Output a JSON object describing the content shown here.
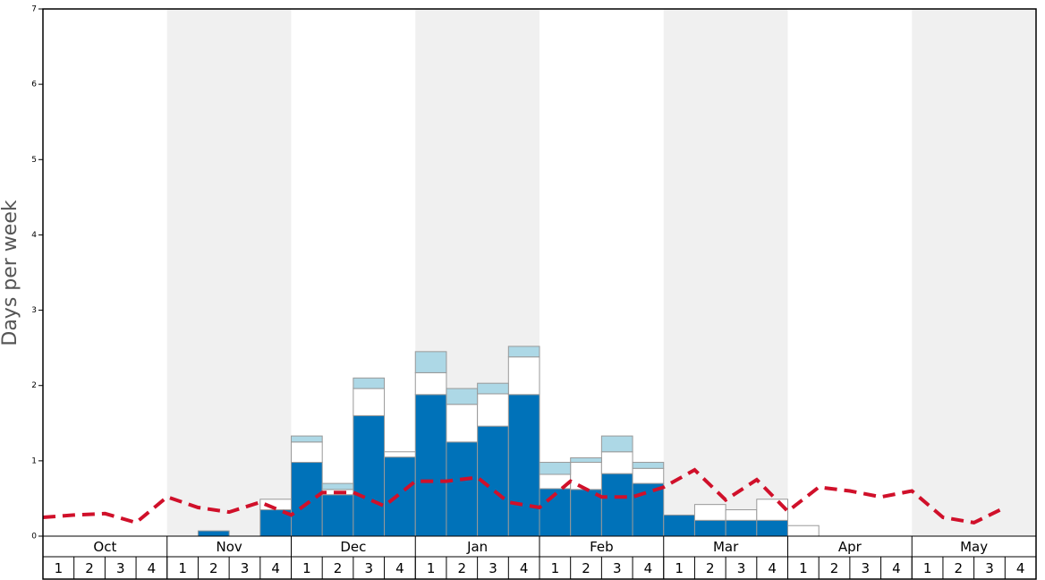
{
  "chart_data": {
    "type": "stacked-bar-line",
    "y_label": "Days per week",
    "groups": [
      "Oct",
      "Nov",
      "Dec",
      "Jan",
      "Feb",
      "Mar",
      "Apr",
      "May"
    ],
    "categories": [
      "1",
      "2",
      "3",
      "4",
      "1",
      "2",
      "3",
      "4",
      "1",
      "2",
      "3",
      "4",
      "1",
      "2",
      "3",
      "4",
      "1",
      "2",
      "3",
      "4",
      "1",
      "2",
      "3",
      "4",
      "1",
      "2",
      "3",
      "4",
      "1",
      "2",
      "3",
      "4"
    ],
    "band_color": "#f0f0f0",
    "series": [
      {
        "color": "#0072b9",
        "values": [
          0,
          0,
          0,
          0,
          0,
          0.07,
          0,
          0.35,
          0.98,
          0.55,
          1.6,
          1.05,
          1.88,
          1.25,
          1.46,
          1.88,
          0.63,
          0.62,
          0.83,
          0.7,
          0.28,
          0.21,
          0.21,
          0.21,
          0,
          0,
          0,
          0,
          0,
          0,
          0,
          0
        ]
      },
      {
        "color": "#ffffff",
        "values": [
          0,
          0,
          0,
          0,
          0,
          0,
          0,
          0.14,
          0.27,
          0.07,
          0.36,
          0.07,
          0.29,
          0.5,
          0.43,
          0.5,
          0.19,
          0.36,
          0.29,
          0.2,
          0,
          0.21,
          0.14,
          0.28,
          0.14,
          0,
          0,
          0,
          0,
          0,
          0,
          0
        ]
      },
      {
        "color": "#add8e6",
        "values": [
          0,
          0,
          0,
          0,
          0,
          0,
          0,
          0,
          0.08,
          0.08,
          0.14,
          0,
          0.28,
          0.21,
          0.14,
          0.14,
          0.16,
          0.06,
          0.21,
          0.08,
          0,
          0,
          0,
          0,
          0,
          0,
          0,
          0,
          0,
          0,
          0,
          0
        ]
      },
      {
        "type": "line",
        "color": "#d0102a",
        "dashed": true,
        "values": [
          0.25,
          0.28,
          0.3,
          0.18,
          0.52,
          0.38,
          0.32,
          0.45,
          0.28,
          0.58,
          0.58,
          0.4,
          0.73,
          0.73,
          0.78,
          0.45,
          0.38,
          0.73,
          0.52,
          0.52,
          0.65,
          0.88,
          0.48,
          0.75,
          0.33,
          0.65,
          0.6,
          0.52,
          0.6,
          0.25,
          0.18,
          0.38
        ]
      }
    ],
    "ylim": [
      0,
      7
    ],
    "yticks": [
      0,
      1,
      2,
      3,
      4,
      5,
      6,
      7
    ]
  }
}
